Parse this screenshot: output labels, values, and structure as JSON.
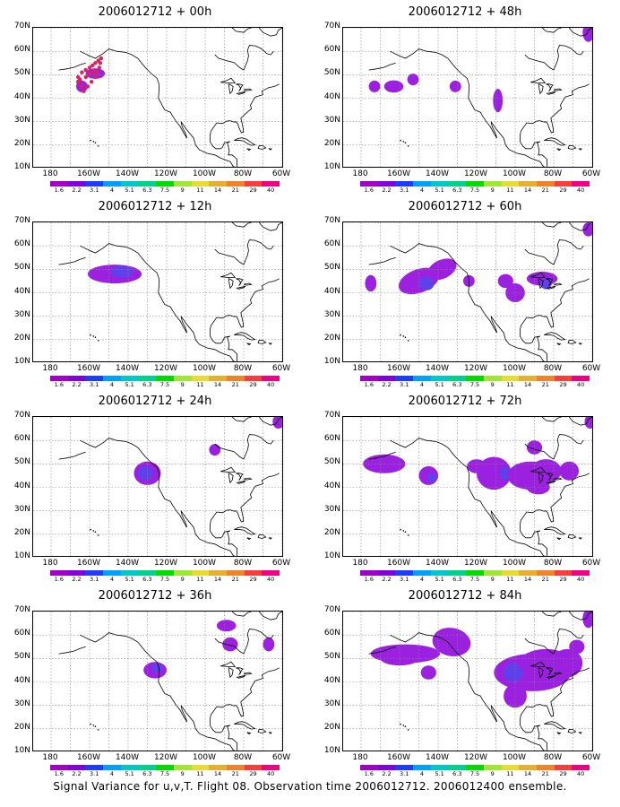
{
  "panels": [
    {
      "title": "2006012712 + 00h"
    },
    {
      "title": "2006012712 + 48h"
    },
    {
      "title": "2006012712 + 12h"
    },
    {
      "title": "2006012712 + 60h"
    },
    {
      "title": "2006012712 + 24h"
    },
    {
      "title": "2006012712 + 72h"
    },
    {
      "title": "2006012712 + 36h"
    },
    {
      "title": "2006012712 + 84h"
    }
  ],
  "lat_labels": [
    "70N",
    "60N",
    "50N",
    "40N",
    "30N",
    "20N",
    "10N"
  ],
  "lon_labels": [
    "180",
    "160W",
    "140W",
    "120W",
    "100W",
    "80W",
    "60W"
  ],
  "colorbar": {
    "labels": [
      "1.6",
      "2.2",
      "3.1",
      "4",
      "5.1",
      "6.3",
      "7.5",
      "9",
      "11",
      "14",
      "21",
      "29",
      "40"
    ],
    "colors": [
      "#a000c8",
      "#8200dc",
      "#1e3cff",
      "#00a0ff",
      "#00c8c8",
      "#00d28c",
      "#00dc00",
      "#a0e632",
      "#e6dc32",
      "#e6af2d",
      "#f08228",
      "#fa3c3c",
      "#f00082"
    ]
  },
  "footer": "Signal Variance for u,v,T. Flight 08. Observation time 2006012712. 2006012400 ensemble.",
  "colors": {
    "signal_purple": "#9b20e0",
    "signal_blue": "#6040e8",
    "track_red": "#e0205a",
    "grid": "#888888"
  }
}
